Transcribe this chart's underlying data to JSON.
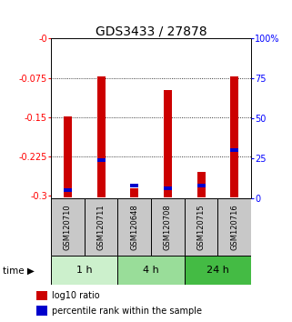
{
  "title": "GDS3433 / 27878",
  "samples": [
    "GSM120710",
    "GSM120711",
    "GSM120648",
    "GSM120708",
    "GSM120715",
    "GSM120716"
  ],
  "log10_ratio_tops": [
    -0.148,
    -0.072,
    -0.286,
    -0.098,
    -0.255,
    -0.072
  ],
  "log10_ratio_bottoms": [
    -0.303,
    -0.303,
    -0.303,
    -0.303,
    -0.303,
    -0.303
  ],
  "percentile_values": [
    5.0,
    24.0,
    8.0,
    6.0,
    8.0,
    30.0
  ],
  "ylim": [
    -0.305,
    0.0
  ],
  "y_ticks_left": [
    0,
    -0.075,
    -0.15,
    -0.225,
    -0.3
  ],
  "y_ticks_right": [
    0,
    25,
    50,
    75,
    100
  ],
  "time_groups": [
    {
      "label": "1 h",
      "start": 0,
      "end": 2,
      "color": "#ccf0cc"
    },
    {
      "label": "4 h",
      "start": 2,
      "end": 4,
      "color": "#99dd99"
    },
    {
      "label": "24 h",
      "start": 4,
      "end": 6,
      "color": "#44bb44"
    }
  ],
  "bar_color": "#cc0000",
  "blue_color": "#0000cc",
  "bar_width": 0.25,
  "title_fontsize": 10,
  "tick_fontsize": 7,
  "sample_fontsize": 6,
  "time_fontsize": 8,
  "legend_fontsize": 7,
  "background_label": "#c8c8c8",
  "legend_red_label": "log10 ratio",
  "legend_blue_label": "percentile rank within the sample",
  "time_label": "time"
}
